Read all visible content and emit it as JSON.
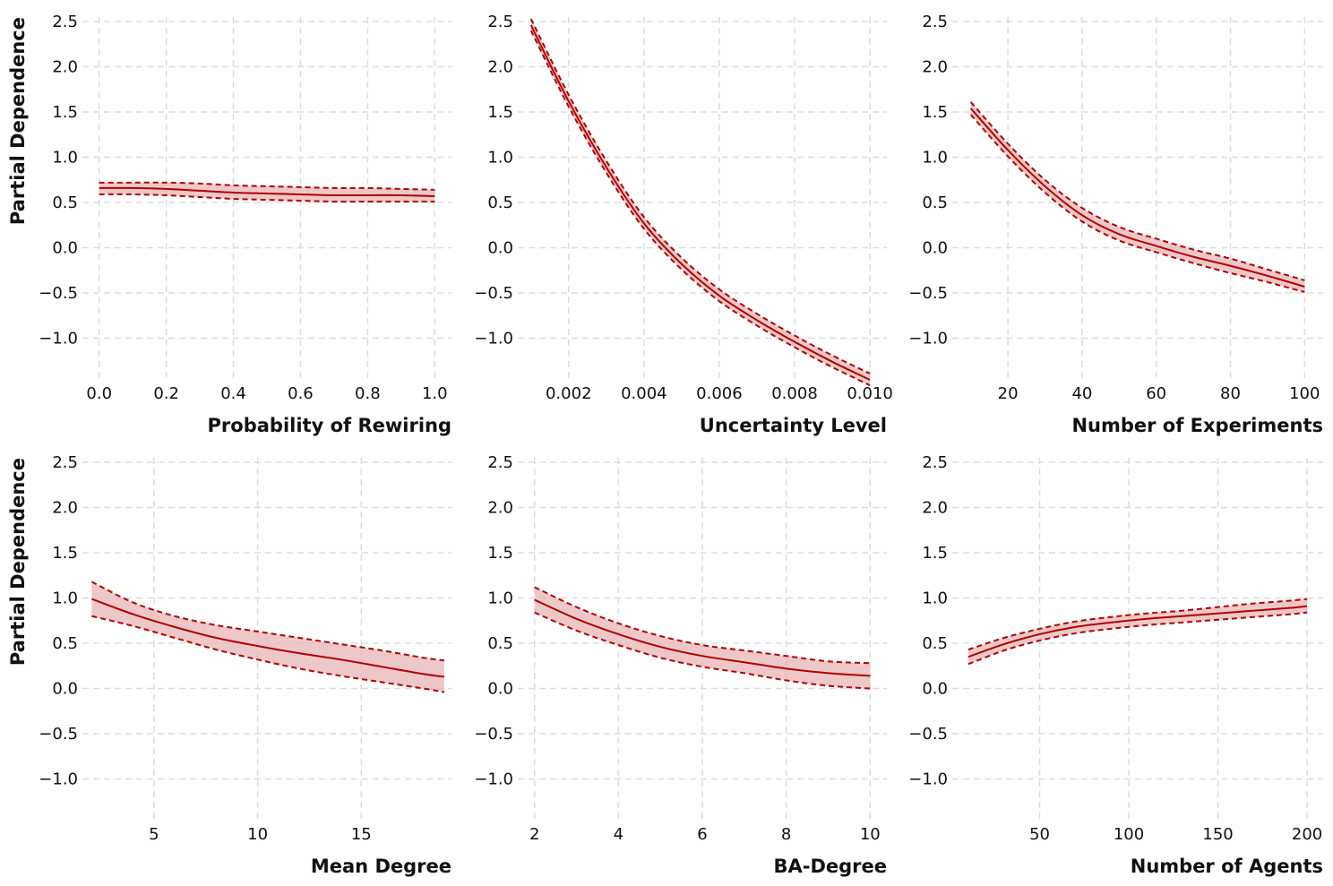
{
  "colors": {
    "line": "#b30000",
    "band": "#e8b6b6",
    "grid": "#dddddd"
  },
  "chart_data": [
    {
      "type": "line",
      "xlabel": "Probability of Rewiring",
      "ylabel": "Partial Dependence",
      "xlim": [
        -0.05,
        1.05
      ],
      "ylim": [
        -1.45,
        2.55
      ],
      "xticks": [
        0.0,
        0.2,
        0.4,
        0.6,
        0.8,
        1.0
      ],
      "xtick_labels": [
        "0.0",
        "0.2",
        "0.4",
        "0.6",
        "0.8",
        "1.0"
      ],
      "yticks": [
        2.5,
        2.0,
        1.5,
        1.0,
        0.5,
        0.0,
        -0.5,
        -1.0
      ],
      "ytick_labels": [
        "2.5",
        "2.0",
        "1.5",
        "1.0",
        "0.5",
        "0.0",
        "−0.5",
        "−1.0"
      ],
      "grid": true,
      "x": [
        0.0,
        0.1,
        0.2,
        0.3,
        0.4,
        0.5,
        0.6,
        0.7,
        0.8,
        0.9,
        1.0
      ],
      "series": [
        {
          "values": [
            0.66,
            0.66,
            0.65,
            0.63,
            0.61,
            0.6,
            0.59,
            0.58,
            0.58,
            0.58,
            0.57
          ]
        },
        {
          "values": [
            0.72,
            0.72,
            0.72,
            0.71,
            0.69,
            0.68,
            0.67,
            0.66,
            0.66,
            0.65,
            0.64
          ]
        },
        {
          "values": [
            0.59,
            0.59,
            0.58,
            0.56,
            0.54,
            0.53,
            0.52,
            0.51,
            0.51,
            0.51,
            0.51
          ]
        }
      ]
    },
    {
      "type": "line",
      "xlabel": "Uncertainty Level",
      "ylabel": "",
      "xlim": [
        0.00065,
        0.01045
      ],
      "ylim": [
        -1.45,
        2.55
      ],
      "xticks": [
        0.002,
        0.004,
        0.006,
        0.008,
        0.01
      ],
      "xtick_labels": [
        "0.002",
        "0.004",
        "0.006",
        "0.008",
        "0.010"
      ],
      "yticks": [
        2.5,
        2.0,
        1.5,
        1.0,
        0.5,
        0.0,
        -0.5,
        -1.0
      ],
      "ytick_labels": [
        "2.5",
        "2.0",
        "1.5",
        "1.0",
        "0.5",
        "0.0",
        "−0.5",
        "−1.0"
      ],
      "grid": true,
      "x": [
        0.001,
        0.002,
        0.003,
        0.004,
        0.005,
        0.006,
        0.007,
        0.008,
        0.009,
        0.01
      ],
      "series": [
        {
          "values": [
            2.46,
            1.62,
            0.89,
            0.27,
            -0.18,
            -0.53,
            -0.8,
            -1.04,
            -1.26,
            -1.46
          ]
        },
        {
          "values": [
            2.53,
            1.69,
            0.96,
            0.34,
            -0.11,
            -0.46,
            -0.73,
            -0.97,
            -1.19,
            -1.39
          ]
        },
        {
          "values": [
            2.4,
            1.56,
            0.83,
            0.21,
            -0.24,
            -0.59,
            -0.86,
            -1.1,
            -1.32,
            -1.52
          ]
        }
      ]
    },
    {
      "type": "line",
      "xlabel": "Number of Experiments",
      "ylabel": "",
      "xlim": [
        5,
        105
      ],
      "ylim": [
        -1.45,
        2.55
      ],
      "xticks": [
        20,
        40,
        60,
        80,
        100
      ],
      "xtick_labels": [
        "20",
        "40",
        "60",
        "80",
        "100"
      ],
      "yticks": [
        2.5,
        2.0,
        1.5,
        1.0,
        0.5,
        0.0,
        -0.5,
        -1.0
      ],
      "ytick_labels": [
        "2.5",
        "2.0",
        "1.5",
        "1.0",
        "0.5",
        "0.0",
        "−0.5",
        "−1.0"
      ],
      "grid": true,
      "x": [
        10,
        20,
        30,
        40,
        50,
        60,
        70,
        80,
        90,
        100
      ],
      "series": [
        {
          "values": [
            1.54,
            1.08,
            0.68,
            0.36,
            0.15,
            0.02,
            -0.1,
            -0.2,
            -0.31,
            -0.43
          ]
        },
        {
          "values": [
            1.61,
            1.15,
            0.75,
            0.44,
            0.23,
            0.1,
            -0.02,
            -0.12,
            -0.24,
            -0.36
          ]
        },
        {
          "values": [
            1.47,
            1.01,
            0.61,
            0.29,
            0.08,
            -0.05,
            -0.17,
            -0.28,
            -0.38,
            -0.49
          ]
        }
      ]
    },
    {
      "type": "line",
      "xlabel": "Mean Degree",
      "ylabel": "Partial Dependence",
      "xlim": [
        1.55,
        19.35
      ],
      "ylim": [
        -1.45,
        2.55
      ],
      "xticks": [
        5,
        10,
        15
      ],
      "xtick_labels": [
        "5",
        "10",
        "15"
      ],
      "yticks": [
        2.5,
        2.0,
        1.5,
        1.0,
        0.5,
        0.0,
        -0.5,
        -1.0
      ],
      "ytick_labels": [
        "2.5",
        "2.0",
        "1.5",
        "1.0",
        "0.5",
        "0.0",
        "−0.5",
        "−1.0"
      ],
      "grid": true,
      "x": [
        2,
        4,
        6,
        8,
        10,
        12,
        14,
        16,
        18,
        19
      ],
      "series": [
        {
          "values": [
            0.99,
            0.82,
            0.68,
            0.56,
            0.47,
            0.39,
            0.32,
            0.24,
            0.16,
            0.13
          ]
        },
        {
          "values": [
            1.18,
            0.95,
            0.8,
            0.7,
            0.63,
            0.56,
            0.49,
            0.42,
            0.34,
            0.31
          ]
        },
        {
          "values": [
            0.8,
            0.69,
            0.56,
            0.43,
            0.32,
            0.22,
            0.14,
            0.07,
            0.0,
            -0.04
          ]
        }
      ]
    },
    {
      "type": "line",
      "xlabel": "BA-Degree",
      "ylabel": "",
      "xlim": [
        1.6,
        10.4
      ],
      "ylim": [
        -1.45,
        2.55
      ],
      "xticks": [
        2,
        4,
        6,
        8,
        10
      ],
      "xtick_labels": [
        "2",
        "4",
        "6",
        "8",
        "10"
      ],
      "yticks": [
        2.5,
        2.0,
        1.5,
        1.0,
        0.5,
        0.0,
        -0.5,
        -1.0
      ],
      "ytick_labels": [
        "2.5",
        "2.0",
        "1.5",
        "1.0",
        "0.5",
        "0.0",
        "−0.5",
        "−1.0"
      ],
      "grid": true,
      "x": [
        2,
        3,
        4,
        5,
        6,
        7,
        8,
        9,
        10
      ],
      "series": [
        {
          "values": [
            0.98,
            0.77,
            0.6,
            0.46,
            0.36,
            0.29,
            0.22,
            0.17,
            0.14
          ]
        },
        {
          "values": [
            1.12,
            0.9,
            0.72,
            0.58,
            0.48,
            0.42,
            0.36,
            0.3,
            0.28
          ]
        },
        {
          "values": [
            0.84,
            0.64,
            0.48,
            0.34,
            0.24,
            0.17,
            0.09,
            0.03,
            0.0
          ]
        }
      ]
    },
    {
      "type": "line",
      "xlabel": "Number of Agents",
      "ylabel": "",
      "xlim": [
        1,
        209
      ],
      "ylim": [
        -1.45,
        2.55
      ],
      "xticks": [
        50,
        100,
        150,
        200
      ],
      "xtick_labels": [
        "50",
        "100",
        "150",
        "200"
      ],
      "yticks": [
        2.5,
        2.0,
        1.5,
        1.0,
        0.5,
        0.0,
        -0.5,
        -1.0
      ],
      "ytick_labels": [
        "2.5",
        "2.0",
        "1.5",
        "1.0",
        "0.5",
        "0.0",
        "−0.5",
        "−1.0"
      ],
      "grid": true,
      "x": [
        10,
        30,
        50,
        70,
        90,
        110,
        130,
        150,
        170,
        190,
        200
      ],
      "series": [
        {
          "values": [
            0.35,
            0.49,
            0.6,
            0.68,
            0.73,
            0.77,
            0.8,
            0.83,
            0.86,
            0.89,
            0.91
          ]
        },
        {
          "values": [
            0.43,
            0.56,
            0.66,
            0.74,
            0.79,
            0.83,
            0.86,
            0.9,
            0.94,
            0.97,
            0.99
          ]
        },
        {
          "values": [
            0.27,
            0.42,
            0.53,
            0.61,
            0.66,
            0.7,
            0.73,
            0.76,
            0.79,
            0.82,
            0.84
          ]
        }
      ]
    }
  ]
}
